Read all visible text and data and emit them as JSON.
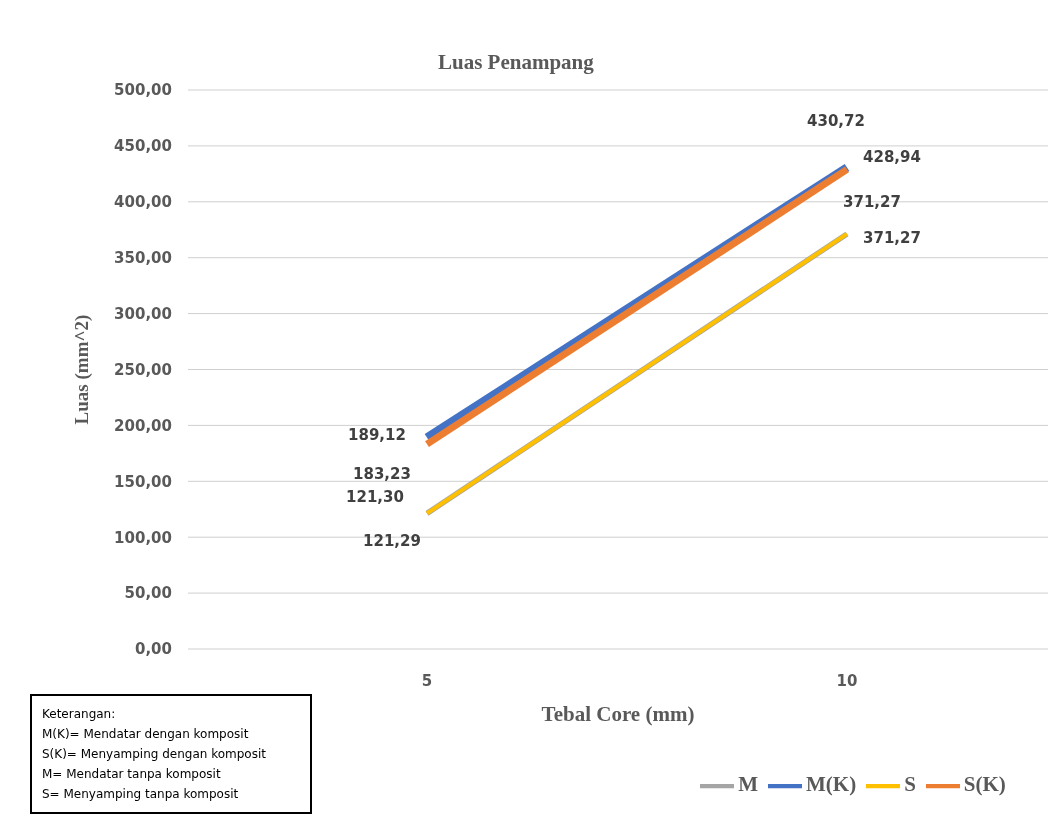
{
  "chart_data": {
    "type": "line",
    "title": "Luas Penampang",
    "xlabel": "Tebal Core (mm)",
    "ylabel": "Luas (mm^2)",
    "categories": [
      "5",
      "10"
    ],
    "series": [
      {
        "name": "M(K)",
        "color": "#4472c4",
        "values": [
          189.12,
          430.72
        ],
        "value_labels": [
          "189,12",
          "430,72"
        ]
      },
      {
        "name": "S(K)",
        "color": "#ed7d31",
        "values": [
          183.23,
          428.94
        ],
        "value_labels": [
          "183,23",
          "428,94"
        ]
      },
      {
        "name": "M",
        "color": "#a5a5a5",
        "values": [
          121.3,
          371.27
        ],
        "value_labels": [
          "121,30",
          "371,27"
        ]
      },
      {
        "name": "S",
        "color": "#ffc000",
        "values": [
          121.29,
          371.27
        ],
        "value_labels": [
          "121,29",
          "371,27"
        ]
      }
    ],
    "ylim": [
      0,
      500
    ],
    "yticks": [
      {
        "value": 0,
        "label": "0,00"
      },
      {
        "value": 50,
        "label": "50,00"
      },
      {
        "value": 100,
        "label": "100,00"
      },
      {
        "value": 150,
        "label": "150,00"
      },
      {
        "value": 200,
        "label": "200,00"
      },
      {
        "value": 250,
        "label": "250,00"
      },
      {
        "value": 300,
        "label": "300,00"
      },
      {
        "value": 350,
        "label": "350,00"
      },
      {
        "value": 400,
        "label": "400,00"
      },
      {
        "value": 450,
        "label": "450,00"
      },
      {
        "value": 500,
        "label": "500,00"
      }
    ],
    "grid": "y",
    "legend": "bottom",
    "marker": "none",
    "line_style": "solid",
    "annotations": [
      "Keterangan:",
      "M(K)= Mendatar dengan komposit",
      "S(K)= Menyamping dengan komposit",
      "M= Mendatar tanpa komposit",
      "S= Menyamping tanpa komposit"
    ]
  }
}
